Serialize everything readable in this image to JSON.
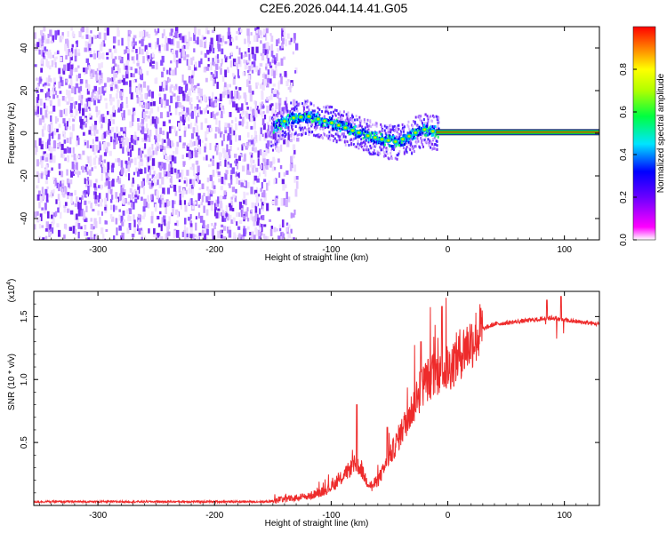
{
  "title": "C2E6.2026.044.14.41.G05",
  "colors": {
    "snr_line": "#ee2b2b",
    "axis": "#000000"
  },
  "chart_data": [
    {
      "type": "heatmap",
      "name": "spectrogram",
      "title": "C2E6.2026.044.14.41.G05",
      "xlabel": "Height of straight line (km)",
      "ylabel": "Frequency (Hz)",
      "xlim": [
        -355,
        130
      ],
      "ylim": [
        -50,
        50
      ],
      "xticks": [
        -300,
        -200,
        -100,
        0,
        100
      ],
      "yticks": [
        -40,
        -20,
        0,
        20,
        40
      ],
      "colorbar": {
        "label": "Normalized spectral amplitude",
        "range": [
          0,
          1
        ],
        "ticks": [
          "0.0",
          "0.2",
          "0.4",
          "0.6",
          "0.8"
        ],
        "tick_values": [
          0,
          0.2,
          0.4,
          0.6,
          0.8
        ]
      },
      "regions": [
        {
          "name": "noise",
          "x_range": [
            -355,
            -145
          ],
          "f_range": [
            -50,
            50
          ],
          "amplitude": 0.1
        },
        {
          "name": "transition",
          "x_range": [
            -150,
            -10
          ],
          "amplitude_range": [
            0.2,
            0.7
          ]
        },
        {
          "name": "carrier",
          "x_range": [
            -10,
            130
          ],
          "frequency": 0.5,
          "amplitude": 1.0
        }
      ],
      "trace_points": [
        {
          "x": -150,
          "f": 3
        },
        {
          "x": -135,
          "f": 7
        },
        {
          "x": -120,
          "f": 8
        },
        {
          "x": -100,
          "f": 5
        },
        {
          "x": -85,
          "f": 2
        },
        {
          "x": -70,
          "f": -1
        },
        {
          "x": -55,
          "f": -3
        },
        {
          "x": -45,
          "f": -4
        },
        {
          "x": -35,
          "f": -2
        },
        {
          "x": -22,
          "f": 2
        },
        {
          "x": -15,
          "f": 1
        },
        {
          "x": -5,
          "f": 0.5
        },
        {
          "x": 30,
          "f": 0.5
        },
        {
          "x": 60,
          "f": 0.5
        },
        {
          "x": 90,
          "f": 0.5
        },
        {
          "x": 130,
          "f": 0.5
        }
      ]
    },
    {
      "type": "line",
      "name": "snr",
      "xlabel": "Height of straight line (km)",
      "ylabel": "SNR (10 * v/v)",
      "exponent_label": "(x10",
      "exponent_sup": "4",
      "exponent_close": ")",
      "xlim": [
        -355,
        130
      ],
      "ylim": [
        0,
        1.7
      ],
      "xticks": [
        -300,
        -200,
        -100,
        0,
        100
      ],
      "yticks": [
        0.5,
        1.0,
        1.5
      ],
      "ytick_labels": [
        "0.5",
        "1.0",
        "1.5"
      ],
      "series": [
        {
          "name": "SNR",
          "x": [
            -355,
            -300,
            -200,
            -155,
            -140,
            -120,
            -105,
            -95,
            -85,
            -80,
            -75,
            -70,
            -65,
            -60,
            -55,
            -50,
            -45,
            -40,
            -35,
            -30,
            -25,
            -20,
            -15,
            -10,
            -5,
            0,
            5,
            10,
            20,
            30,
            40,
            50,
            60,
            70,
            80,
            90,
            100,
            110,
            120,
            130
          ],
          "values": [
            0.03,
            0.03,
            0.03,
            0.03,
            0.05,
            0.07,
            0.12,
            0.18,
            0.28,
            0.33,
            0.3,
            0.2,
            0.15,
            0.2,
            0.28,
            0.38,
            0.48,
            0.58,
            0.68,
            0.78,
            0.88,
            0.98,
            1.02,
            1.05,
            1.07,
            1.08,
            1.14,
            1.2,
            1.3,
            1.4,
            1.44,
            1.45,
            1.46,
            1.47,
            1.48,
            1.49,
            1.47,
            1.46,
            1.45,
            1.44
          ]
        }
      ],
      "spikes": [
        {
          "x": -78,
          "peak": 0.8
        },
        {
          "x": -52,
          "peak": 0.62
        },
        {
          "x": -23,
          "peak": 1.3
        },
        {
          "x": -5,
          "peak": 1.58
        },
        {
          "x": 85,
          "peak": 1.63
        },
        {
          "x": 97,
          "peak": 1.66
        }
      ]
    }
  ]
}
